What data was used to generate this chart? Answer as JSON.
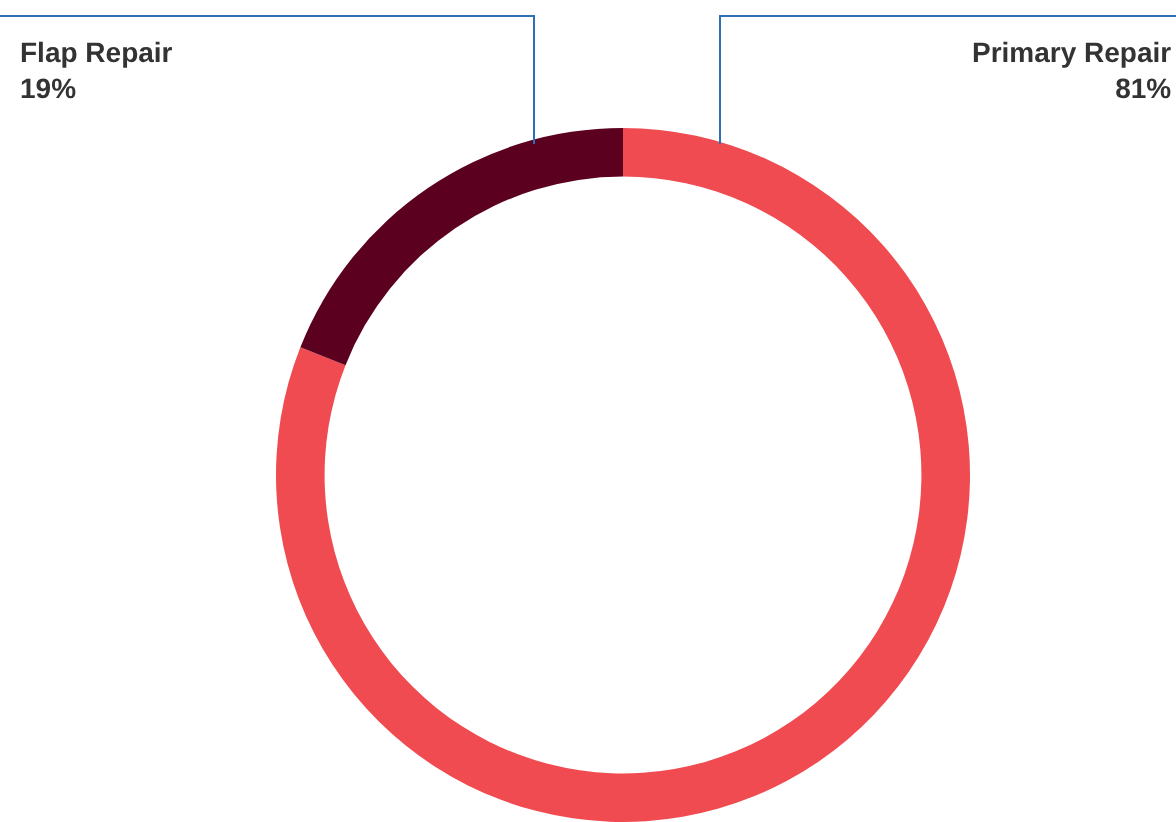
{
  "chart_data": {
    "type": "donut",
    "categories": [
      "Primary Repair",
      "Flap Repair"
    ],
    "values": [
      81,
      19
    ],
    "value_labels": [
      "81%",
      "19%"
    ],
    "colors": [
      "#f04b51",
      "#5c0020"
    ],
    "legend": false
  }
}
